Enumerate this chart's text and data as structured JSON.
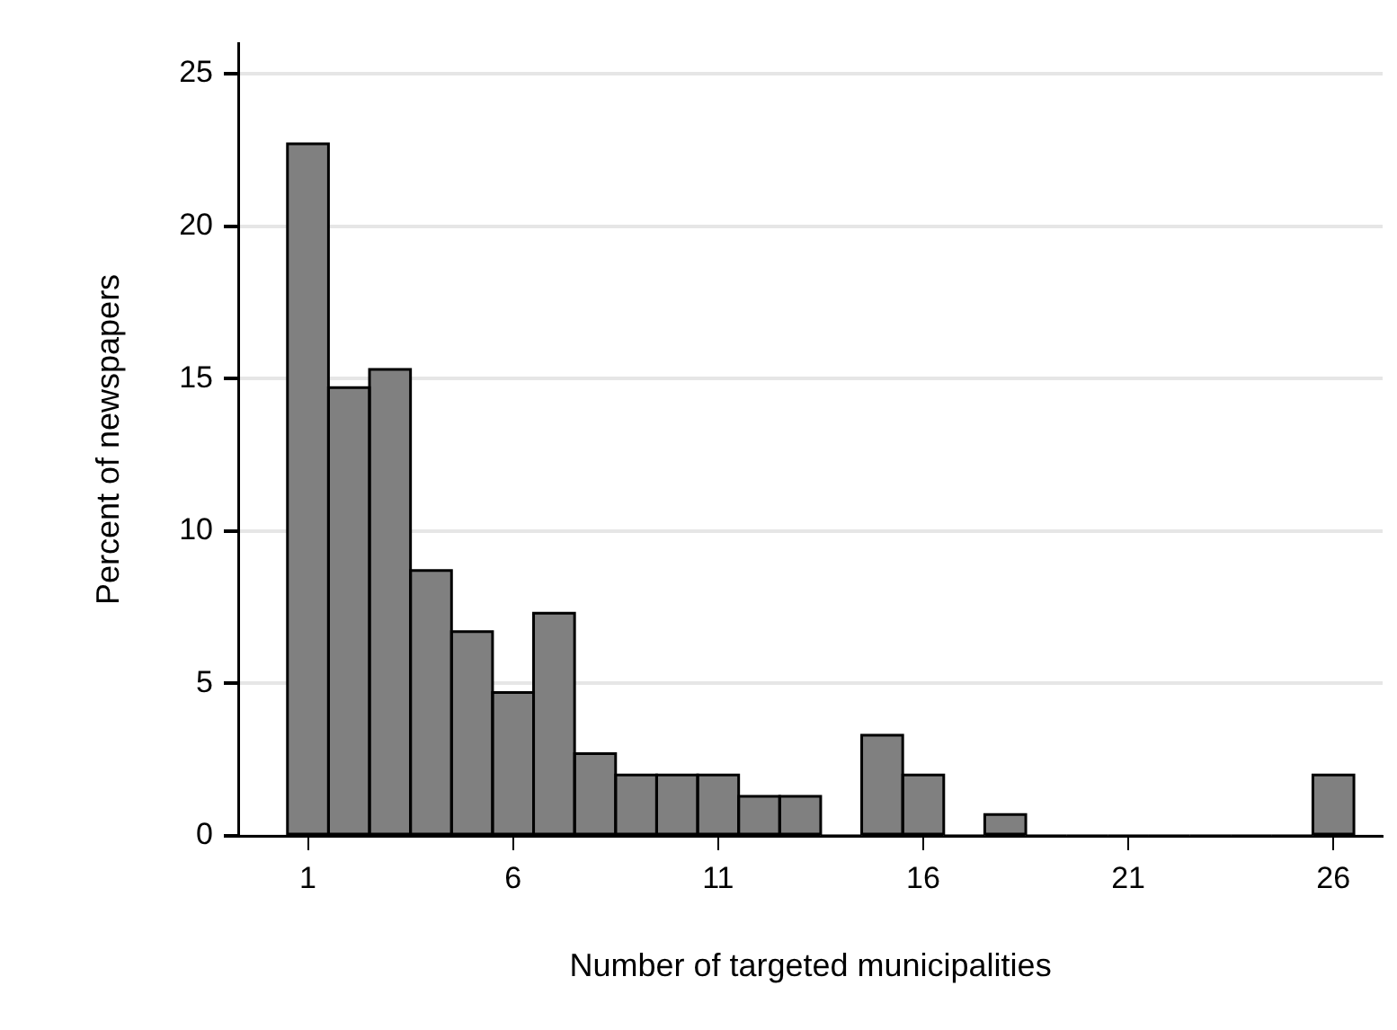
{
  "chart_data": {
    "type": "histogram",
    "xlabel": "Number of targeted municipalities",
    "ylabel": "Percent of newspapers",
    "bins": [
      0.5,
      1.5,
      2.5,
      3.5,
      4.5,
      5.5,
      6.5,
      7.5,
      8.5,
      9.5,
      10.5,
      11.5,
      12.5,
      13.5,
      14.5,
      15.5,
      16.5,
      17.5,
      18.5,
      19.5,
      20.5,
      21.5,
      22.5,
      23.5,
      24.5,
      25.5,
      26.5
    ],
    "values": [
      22.7,
      14.7,
      15.3,
      8.7,
      6.7,
      4.7,
      7.3,
      2.7,
      2.0,
      2.0,
      2.0,
      1.3,
      1.3,
      0,
      3.3,
      2.0,
      0,
      0.7,
      0,
      0,
      0,
      0,
      0,
      0,
      0,
      2.0
    ],
    "color": "#808080",
    "xlim": [
      -0.7,
      27.2
    ],
    "xticks": [
      1,
      6,
      11,
      16,
      21,
      26
    ],
    "ylim": [
      0,
      26
    ],
    "yticks": [
      0,
      5,
      10,
      15,
      20,
      25
    ],
    "grid": "y",
    "legend": false
  }
}
